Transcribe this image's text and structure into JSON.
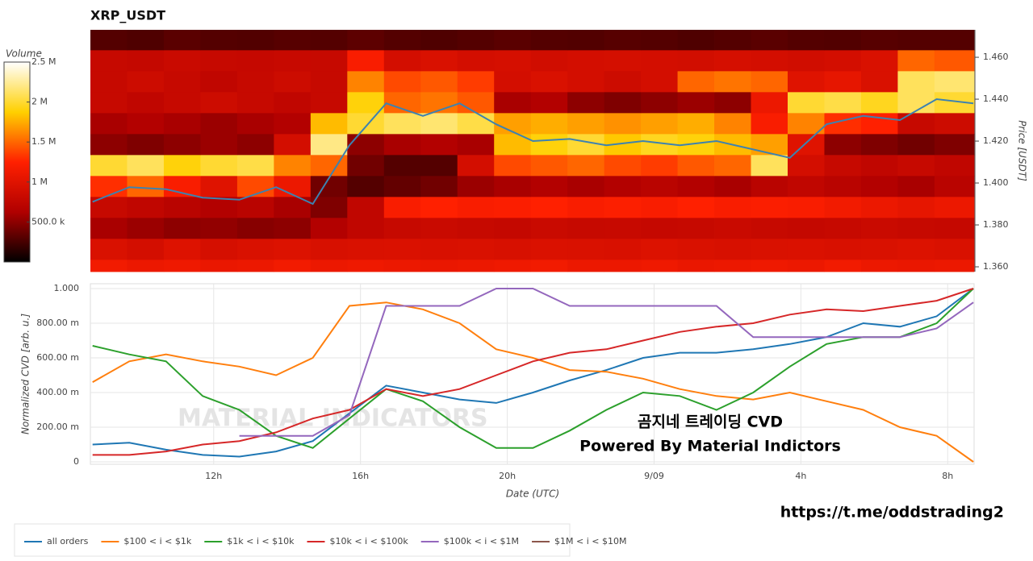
{
  "chart_data": [
    {
      "type": "heatmap",
      "title": "XRP_USDT",
      "ylabel": "Price [USDT]",
      "xlim": [
        8.64,
        32.72
      ],
      "ylim": [
        1.3577,
        1.4731
      ],
      "yticks": [
        {
          "value": 1.36,
          "label": "1.360"
        },
        {
          "value": 1.38,
          "label": "1.380"
        },
        {
          "value": 1.4,
          "label": "1.400"
        },
        {
          "value": 1.42,
          "label": "1.420"
        },
        {
          "value": 1.44,
          "label": "1.440"
        },
        {
          "value": 1.46,
          "label": "1.460"
        }
      ],
      "xbins": [
        8.64,
        9.64,
        10.64,
        11.64,
        12.64,
        13.64,
        14.64,
        15.64,
        16.64,
        17.64,
        18.64,
        19.64,
        20.64,
        21.64,
        22.64,
        23.64,
        24.64,
        25.64,
        26.64,
        27.64,
        28.64,
        29.64,
        30.64,
        31.64,
        32.72
      ],
      "ybins": [
        1.3577,
        1.3635,
        1.3735,
        1.3835,
        1.3935,
        1.4035,
        1.4135,
        1.4235,
        1.4335,
        1.4435,
        1.4535,
        1.4635,
        1.4731
      ],
      "z": [
        [
          1150000,
          1100000,
          1120000,
          1080000,
          1100000,
          1150000,
          1100000,
          1120000,
          1100000,
          1080000,
          1100000,
          1120000,
          1150000,
          1100000,
          1100000,
          1120000,
          1080000,
          1100000,
          1120000,
          1100000,
          1150000,
          1100000,
          1080000,
          1100000
        ],
        [
          950000,
          900000,
          980000,
          920000,
          950000,
          970000,
          930000,
          950000,
          960000,
          940000,
          950000,
          930000,
          960000,
          950000,
          940000,
          970000,
          950000,
          930000,
          950000,
          960000,
          940000,
          950000,
          970000,
          950000
        ],
        [
          600000,
          550000,
          500000,
          520000,
          480000,
          500000,
          650000,
          750000,
          800000,
          820000,
          800000,
          780000,
          820000,
          800000,
          810000,
          790000,
          800000,
          820000,
          800000,
          780000,
          800000,
          820000,
          800000,
          790000
        ],
        [
          800000,
          750000,
          700000,
          650000,
          700000,
          600000,
          450000,
          750000,
          1200000,
          1250000,
          1200000,
          1220000,
          1250000,
          1200000,
          1230000,
          1200000,
          1250000,
          1200000,
          1220000,
          1200000,
          1150000,
          1100000,
          1050000,
          1100000
        ],
        [
          1300000,
          1500000,
          1200000,
          1000000,
          1400000,
          1100000,
          400000,
          300000,
          350000,
          400000,
          550000,
          600000,
          650000,
          600000,
          650000,
          700000,
          650000,
          600000,
          700000,
          750000,
          700000,
          650000,
          600000,
          700000
        ],
        [
          2000000,
          2100000,
          1900000,
          2000000,
          2050000,
          1600000,
          1500000,
          400000,
          300000,
          300000,
          900000,
          1400000,
          1450000,
          1500000,
          1400000,
          1350000,
          1450000,
          1500000,
          2100000,
          900000,
          800000,
          750000,
          800000,
          750000
        ],
        [
          500000,
          450000,
          500000,
          550000,
          500000,
          900000,
          2200000,
          500000,
          600000,
          650000,
          600000,
          1800000,
          1900000,
          2000000,
          1850000,
          1950000,
          1900000,
          1800000,
          1700000,
          1000000,
          500000,
          450000,
          400000,
          450000
        ],
        [
          600000,
          650000,
          600000,
          550000,
          600000,
          650000,
          1800000,
          2000000,
          2100000,
          2150000,
          2050000,
          1700000,
          1750000,
          1700000,
          1650000,
          1700000,
          1750000,
          1600000,
          1200000,
          1600000,
          1300000,
          1250000,
          800000,
          850000
        ],
        [
          800000,
          750000,
          800000,
          850000,
          800000,
          750000,
          800000,
          1900000,
          1500000,
          1550000,
          1450000,
          600000,
          650000,
          500000,
          450000,
          500000,
          550000,
          500000,
          1100000,
          2000000,
          2050000,
          1950000,
          2100000,
          2000000
        ],
        [
          800000,
          850000,
          800000,
          750000,
          800000,
          850000,
          800000,
          1600000,
          1400000,
          1450000,
          1350000,
          900000,
          950000,
          900000,
          850000,
          900000,
          1500000,
          1550000,
          1500000,
          1000000,
          1050000,
          950000,
          2100000,
          2150000
        ],
        [
          800000,
          780000,
          820000,
          800000,
          790000,
          810000,
          800000,
          1200000,
          900000,
          950000,
          900000,
          920000,
          880000,
          900000,
          910000,
          900000,
          890000,
          920000,
          900000,
          880000,
          900000,
          950000,
          1500000,
          1450000
        ],
        [
          300000,
          280000,
          320000,
          300000,
          290000,
          310000,
          300000,
          330000,
          300000,
          280000,
          300000,
          320000,
          300000,
          290000,
          310000,
          300000,
          280000,
          300000,
          320000,
          300000,
          290000,
          310000,
          300000,
          300000
        ]
      ],
      "colorbar_title": "Volume",
      "zlim": [
        0,
        2500000
      ],
      "zticks": [
        {
          "value": 500000,
          "label": "500.0 k"
        },
        {
          "value": 1000000,
          "label": "1 M"
        },
        {
          "value": 1500000,
          "label": "1.5 M"
        },
        {
          "value": 2000000,
          "label": "2 M"
        },
        {
          "value": 2500000,
          "label": "2.5 M"
        }
      ],
      "colorscale": [
        "#000000",
        "#b00000",
        "#ff2000",
        "#ffd000",
        "#ffffff"
      ],
      "x": [
        8.7,
        9.7,
        10.7,
        11.7,
        12.7,
        13.7,
        14.7,
        15.7,
        16.7,
        17.7,
        18.7,
        19.7,
        20.7,
        21.7,
        22.7,
        23.7,
        24.7,
        25.7,
        26.7,
        27.7,
        28.7,
        29.7,
        30.7,
        31.7,
        32.7
      ],
      "series": [
        {
          "color": "#3d82b0",
          "values": [
            1.391,
            1.398,
            1.397,
            1.393,
            1.392,
            1.398,
            1.39,
            1.418,
            1.438,
            1.432,
            1.438,
            1.428,
            1.42,
            1.421,
            1.418,
            1.42,
            1.418,
            1.42,
            1.416,
            1.412,
            1.428,
            1.432,
            1.43,
            1.44,
            1.438
          ]
        }
      ]
    },
    {
      "type": "line",
      "xlabel": "Date (UTC)",
      "ylabel": "Normalized CVD [arb. u.]",
      "grid": true,
      "xlim": [
        8.64,
        32.72
      ],
      "ylim": [
        -0.014,
        1.028
      ],
      "xticks": [
        {
          "value": 12,
          "label": "12h"
        },
        {
          "value": 16,
          "label": "16h"
        },
        {
          "value": 20,
          "label": "20h"
        },
        {
          "value": 24,
          "label": "9/09"
        },
        {
          "value": 28,
          "label": "4h"
        },
        {
          "value": 32,
          "label": "8h"
        }
      ],
      "yticks": [
        0,
        {
          "value": 0.2,
          "label": "200.00 m"
        },
        {
          "value": 0.4,
          "label": "400.00 m"
        },
        {
          "value": 0.6,
          "label": "600.00 m"
        },
        {
          "value": 0.8,
          "label": "800.00 m"
        },
        {
          "value": 1,
          "label": "1.000"
        }
      ],
      "x": [
        8.7,
        9.7,
        10.7,
        11.7,
        12.7,
        13.7,
        14.7,
        15.7,
        16.7,
        17.7,
        18.7,
        19.7,
        20.7,
        21.7,
        22.7,
        23.7,
        24.7,
        25.7,
        26.7,
        27.7,
        28.7,
        29.7,
        30.7,
        31.7,
        32.7
      ],
      "series": [
        {
          "name": "all orders",
          "color": "#1f77b4",
          "values": [
            0.1,
            0.11,
            0.07,
            0.04,
            0.03,
            0.06,
            0.12,
            0.28,
            0.44,
            0.4,
            0.36,
            0.34,
            0.4,
            0.47,
            0.53,
            0.6,
            0.63,
            0.63,
            0.65,
            0.68,
            0.72,
            0.8,
            0.78,
            0.84,
            1.0
          ]
        },
        {
          "name": "$100 < i < $1k",
          "color": "#ff7f0e",
          "values": [
            0.46,
            0.58,
            0.62,
            0.58,
            0.55,
            0.5,
            0.6,
            0.9,
            0.92,
            0.88,
            0.8,
            0.65,
            0.6,
            0.53,
            0.52,
            0.48,
            0.42,
            0.38,
            0.36,
            0.4,
            0.35,
            0.3,
            0.2,
            0.15,
            0.0
          ]
        },
        {
          "name": "$1k < i < $10k",
          "color": "#2ca02c",
          "values": [
            0.67,
            0.62,
            0.58,
            0.38,
            0.3,
            0.15,
            0.08,
            0.25,
            0.42,
            0.35,
            0.2,
            0.08,
            0.08,
            0.18,
            0.3,
            0.4,
            0.38,
            0.3,
            0.4,
            0.55,
            0.68,
            0.72,
            0.72,
            0.8,
            1.0
          ]
        },
        {
          "name": "$10k < i < $100k",
          "color": "#d62728",
          "values": [
            0.04,
            0.04,
            0.06,
            0.1,
            0.12,
            0.17,
            0.25,
            0.3,
            0.42,
            0.38,
            0.42,
            0.5,
            0.58,
            0.63,
            0.65,
            0.7,
            0.75,
            0.78,
            0.8,
            0.85,
            0.88,
            0.87,
            0.9,
            0.93,
            1.0
          ]
        },
        {
          "name": "$100k < i < $1M",
          "color": "#9467bd",
          "values": [
            null,
            null,
            null,
            null,
            0.15,
            0.15,
            0.15,
            0.27,
            0.9,
            0.9,
            0.9,
            1.0,
            1.0,
            0.9,
            0.9,
            0.9,
            0.9,
            0.9,
            0.72,
            0.72,
            0.72,
            0.72,
            0.72,
            0.77,
            0.92
          ]
        },
        {
          "name": "$1M < i < $10M",
          "color": "#8c564b",
          "values": [
            null,
            null,
            null,
            null,
            null,
            null,
            null,
            null,
            null,
            null,
            null,
            null,
            null,
            null,
            null,
            null,
            null,
            null,
            null,
            null,
            null,
            null,
            null,
            null,
            null
          ]
        }
      ],
      "watermark": "MATERIAL INDICATORS",
      "annotations": [
        "곰지네 트레이딩 CVD",
        "Powered By Material Indictors"
      ]
    }
  ],
  "footer": "https://t.me/oddstrading2"
}
